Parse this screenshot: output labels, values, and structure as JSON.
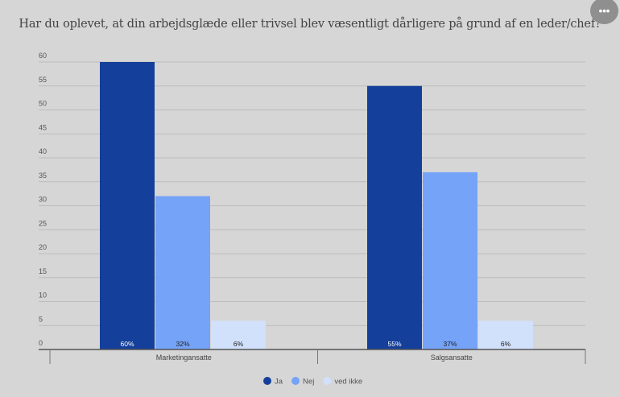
{
  "menu_label": "•••",
  "chart_data": {
    "type": "bar",
    "title": "Har du oplevet, at din arbejdsglæde eller trivsel blev væsentligt dårligere på grund af en leder/chef?",
    "categories": [
      "Marketingansatte",
      "Salgsansatte"
    ],
    "series": [
      {
        "name": "Ja",
        "color": "#143f9a",
        "values": [
          60,
          55
        ],
        "labels": [
          "60%",
          "55%"
        ]
      },
      {
        "name": "Nej",
        "color": "#74a3f7",
        "values": [
          32,
          37
        ],
        "labels": [
          "32%",
          "37%"
        ]
      },
      {
        "name": "ved ikke",
        "color": "#d1e0fb",
        "values": [
          6,
          6
        ],
        "labels": [
          "6%",
          "6%"
        ]
      }
    ],
    "yticks": [
      "0",
      "5",
      "10",
      "15",
      "20",
      "25",
      "30",
      "35",
      "40",
      "45",
      "50",
      "55",
      "60"
    ],
    "ylim": [
      0,
      60
    ],
    "grid": true,
    "legend": "bottom-center",
    "xlabel": "",
    "ylabel": ""
  }
}
